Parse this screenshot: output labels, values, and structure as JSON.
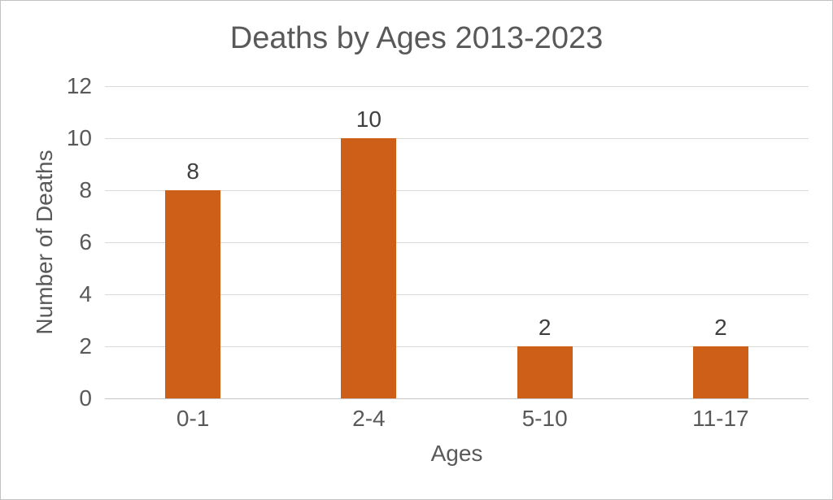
{
  "chart_data": {
    "type": "bar",
    "title": "Deaths by Ages 2013-2023",
    "xlabel": "Ages",
    "ylabel": "Number of Deaths",
    "categories": [
      "0-1",
      "2-4",
      "5-10",
      "11-17"
    ],
    "values": [
      8,
      10,
      2,
      2
    ],
    "data_labels": [
      "8",
      "10",
      "2",
      "2"
    ],
    "yticks": [
      0,
      2,
      4,
      6,
      8,
      10,
      12
    ],
    "ylim": [
      0,
      12
    ],
    "grid": true,
    "legend_position": "none",
    "colors": {
      "bar": "#cd5f19",
      "title_text": "#595959",
      "axis_text": "#595959",
      "data_label_text": "#3f3f3f",
      "gridline": "#d9d9d9",
      "axis_line": "#c6c6c6",
      "background": "#ffffff",
      "border": "#c2c2c2"
    }
  }
}
